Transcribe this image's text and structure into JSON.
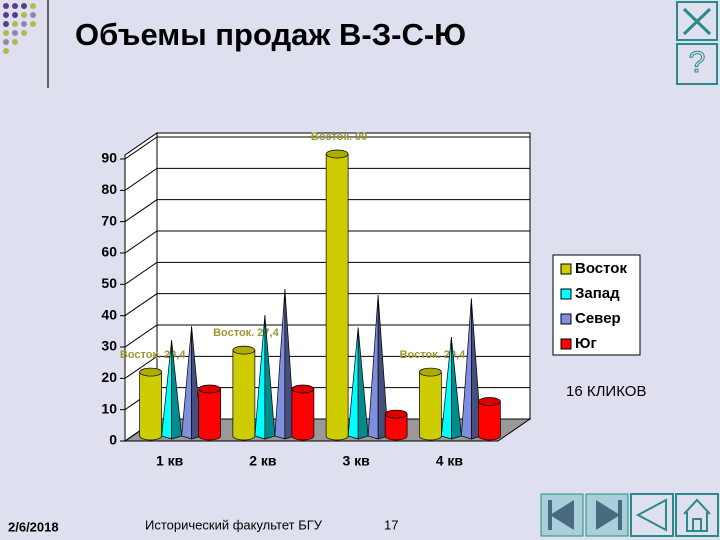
{
  "slide": {
    "title": "Объемы продаж В-З-С-Ю",
    "note": "16 КЛИКОВ",
    "date": "2/6/2018",
    "footer": "Исторический факультет БГУ",
    "page_number": "17"
  },
  "chart_data": {
    "type": "bar3d",
    "categories": [
      "1 кв",
      "2 кв",
      "3 кв",
      "4 кв"
    ],
    "series": [
      {
        "name": "Восток",
        "color": "#cccc00",
        "shape": "cylinder",
        "values": [
          20.4,
          27.4,
          90,
          20.4
        ],
        "value_labels": [
          "Восток. 20,4",
          "Восток. 27,4",
          "Восток. 90",
          "Восток. 20,4"
        ]
      },
      {
        "name": "Запад",
        "color": "#00ffff",
        "shape": "cone",
        "values": [
          30.6,
          38.6,
          34.6,
          31.6
        ]
      },
      {
        "name": "Север",
        "color": "#7f8fdf",
        "shape": "cone",
        "values": [
          35,
          46.9,
          45,
          43.9
        ]
      },
      {
        "name": "Юг",
        "color": "#ff0000",
        "shape": "cylinder",
        "values": [
          15,
          15,
          7,
          11
        ]
      }
    ],
    "ylim": [
      0,
      90
    ],
    "yticks": [
      0,
      10,
      20,
      30,
      40,
      50,
      60,
      70,
      80,
      90
    ],
    "grid": true,
    "legend": "right"
  }
}
